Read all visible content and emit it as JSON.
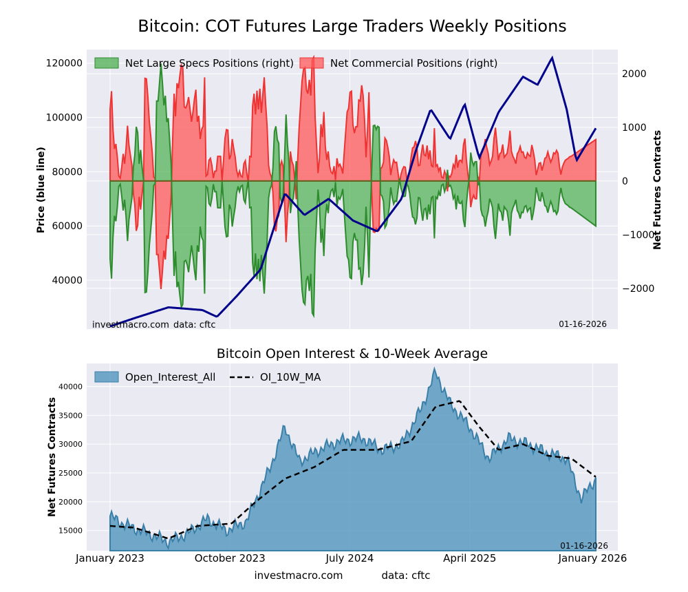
{
  "title": "Bitcoin: COT Futures Large Traders Weekly Positions",
  "footer": {
    "left": "investmacro.com",
    "right": "data: cftc"
  },
  "colors": {
    "plot_bg": "#eaeaf2",
    "grid": "#ffffff",
    "price_line": "#00008b",
    "specs_fill": "#4caf50",
    "specs_line": "#2e8b2e",
    "comm_fill": "#ff5a5a",
    "comm_line": "#ee3333",
    "oi_fill": "#5b9bc2",
    "oi_line": "#3a7fa8",
    "ma_line": "#000000"
  },
  "chart_data": [
    {
      "type": "area",
      "watermark": {
        "site": "investmacro.com",
        "source": "data: cftc",
        "date": "01-16-2026"
      },
      "ylabel_left": "Price (blue line)",
      "ylabel_right": "Net Futures Contracts",
      "yticks_left": [
        40000,
        60000,
        80000,
        100000,
        120000
      ],
      "ylim_left": [
        22000,
        125000
      ],
      "yticks_right": [
        -2000,
        -1000,
        0,
        1000,
        2000
      ],
      "ytick_labels_right": [
        "−2000",
        "−1000",
        "0",
        "1000",
        "2000"
      ],
      "ylim_right": [
        -2760,
        2450
      ],
      "x_start": "2023-01-03",
      "x_end": "2026-01-13",
      "legend": {
        "position": "top-left",
        "entries": [
          "Net Large Specs Positions (right)",
          "Net Commercial Positions (right)"
        ]
      },
      "series": [
        {
          "name": "Net Large Specs Positions (right)",
          "axis": "right",
          "values": [
            -1450,
            -1820,
            -1050,
            -650,
            -750,
            -480,
            -100,
            -60,
            -280,
            -550,
            -350,
            -670,
            -1120,
            -720,
            -520,
            -320,
            250,
            480,
            1010,
            900,
            320,
            580,
            260,
            20,
            -2080,
            -2070,
            -1700,
            -1200,
            -900,
            -580,
            -80,
            -50,
            1490,
            1490,
            1830,
            2190,
            1830,
            1410,
            1590,
            1100,
            1170,
            740,
            310,
            -800,
            -1770,
            -1310,
            -1980,
            -1880,
            -2140,
            -2350,
            -2300,
            -1500,
            -1480,
            -1560,
            -1700,
            -1450,
            -1200,
            -1400,
            -1660,
            -1850,
            -1200,
            -1320,
            -850,
            -1050,
            -1110,
            -2100,
            -100,
            -130,
            -420,
            -460,
            -320,
            -60,
            -200,
            -200,
            -500,
            -500,
            -500,
            0,
            -410,
            -860,
            -1040,
            -1030,
            -440,
            -520,
            -850,
            -660,
            -490,
            -220,
            -100,
            -200,
            -100,
            -80,
            -350,
            -410,
            -160,
            20,
            -500,
            -490,
            -1520,
            -1770,
            -1350,
            -1830,
            -1450,
            -1870,
            -1380,
            -1740,
            -2100,
            -1550,
            -1100,
            -320,
            -150,
            -80,
            250,
            920,
            1020,
            770,
            700,
            -300,
            -400,
            -290,
            440,
            1240,
            680,
            360,
            -600,
            -400,
            -320,
            -20,
            370,
            -430,
            -1080,
            -1550,
            -2030,
            -2260,
            -2300,
            -1850,
            -1770,
            -2050,
            -1730,
            -2460,
            -2510,
            -1300,
            -700,
            -160,
            -470,
            -1150,
            -890,
            -1400,
            -700,
            -430,
            -600,
            -300,
            -180,
            -150,
            -300,
            -20,
            -460,
            -300,
            -340,
            -270,
            -150,
            -580,
            -990,
            -1400,
            -1470,
            -1800,
            -1820,
            -1140,
            -970,
            -1100,
            -1100,
            -1640,
            -1620,
            -1940,
            -1730,
            -1230,
            -480,
            -1020,
            -1800,
            -570,
            280,
            1030,
            1040,
            960,
            1020,
            1000,
            -250,
            -280,
            -380,
            -870,
            -820,
            -680,
            -490,
            -120,
            -300,
            -430,
            -370,
            -380,
            -170,
            50,
            -130,
            -230,
            -290,
            -280,
            -50,
            -100,
            -230,
            -480,
            -670,
            -690,
            -810,
            -690,
            -310,
            -320,
            -550,
            -740,
            -530,
            -510,
            -720,
            -440,
            -620,
            -310,
            -290,
            -1070,
            -300,
            -330,
            -200,
            -280,
            -80,
            -60,
            -200,
            -120,
            210,
            -100,
            -80,
            -160,
            -330,
            -270,
            -530,
            -270,
            -410,
            -420,
            -380,
            -730,
            -860,
            -430,
            -150,
            70,
            530,
            370,
            290,
            360,
            360,
            -80,
            -20,
            -530,
            -640,
            -670,
            -850,
            -680,
            -560,
            -330,
            -400,
            -500,
            -860,
            -1080,
            -760,
            -420,
            -550,
            -580,
            -740,
            -480,
            -520,
            -560,
            -740,
            -1020,
            -600,
            -500,
            -440,
            -350,
            -550,
            -600,
            -700,
            -580,
            -590,
            -480,
            -460,
            -570,
            -520,
            -500,
            -730,
            -600,
            -430,
            -120,
            -230,
            -360,
            -370,
            -210,
            -330,
            -460,
            -480,
            -590,
            -480,
            -380,
            -450,
            -570,
            -550,
            -620,
            -560,
            -300,
            -130,
            -280,
            -360,
            -420,
            -440,
            -460,
            -490,
            -500,
            -520,
            -540,
            -560,
            -580,
            -600,
            -620,
            -640,
            -660,
            -680,
            -700,
            -720,
            -740,
            -760,
            -780,
            -800,
            -820,
            -840
          ],
          "note": "weekly values"
        },
        {
          "name": "Net Commercial Positions (right)",
          "axis": "right"
        },
        {
          "name": "",
          "axis": "left",
          "kind": "price-line"
        }
      ]
    },
    {
      "type": "area",
      "title": "Bitcoin Open Interest & 10-Week Average",
      "ylabel": "Net Futures Contracts",
      "watermark_date": "01-16-2026",
      "yticks": [
        15000,
        20000,
        25000,
        30000,
        35000,
        40000
      ],
      "ylim": [
        11500,
        44000
      ],
      "xticks": [
        {
          "date": "2023-01-03",
          "label": "January 2023"
        },
        {
          "date": "2023-10-03",
          "label": "October 2023"
        },
        {
          "date": "2024-07-02",
          "label": "July 2024"
        },
        {
          "date": "2025-04-01",
          "label": "April 2025"
        },
        {
          "date": "2026-01-06",
          "label": "January 2026"
        }
      ],
      "legend": {
        "position": "top-left",
        "entries": [
          "Open_Interest_All",
          "OI_10W_MA"
        ]
      },
      "series": [
        {
          "name": "Open_Interest_All"
        },
        {
          "name": "OI_10W_MA"
        }
      ]
    }
  ]
}
